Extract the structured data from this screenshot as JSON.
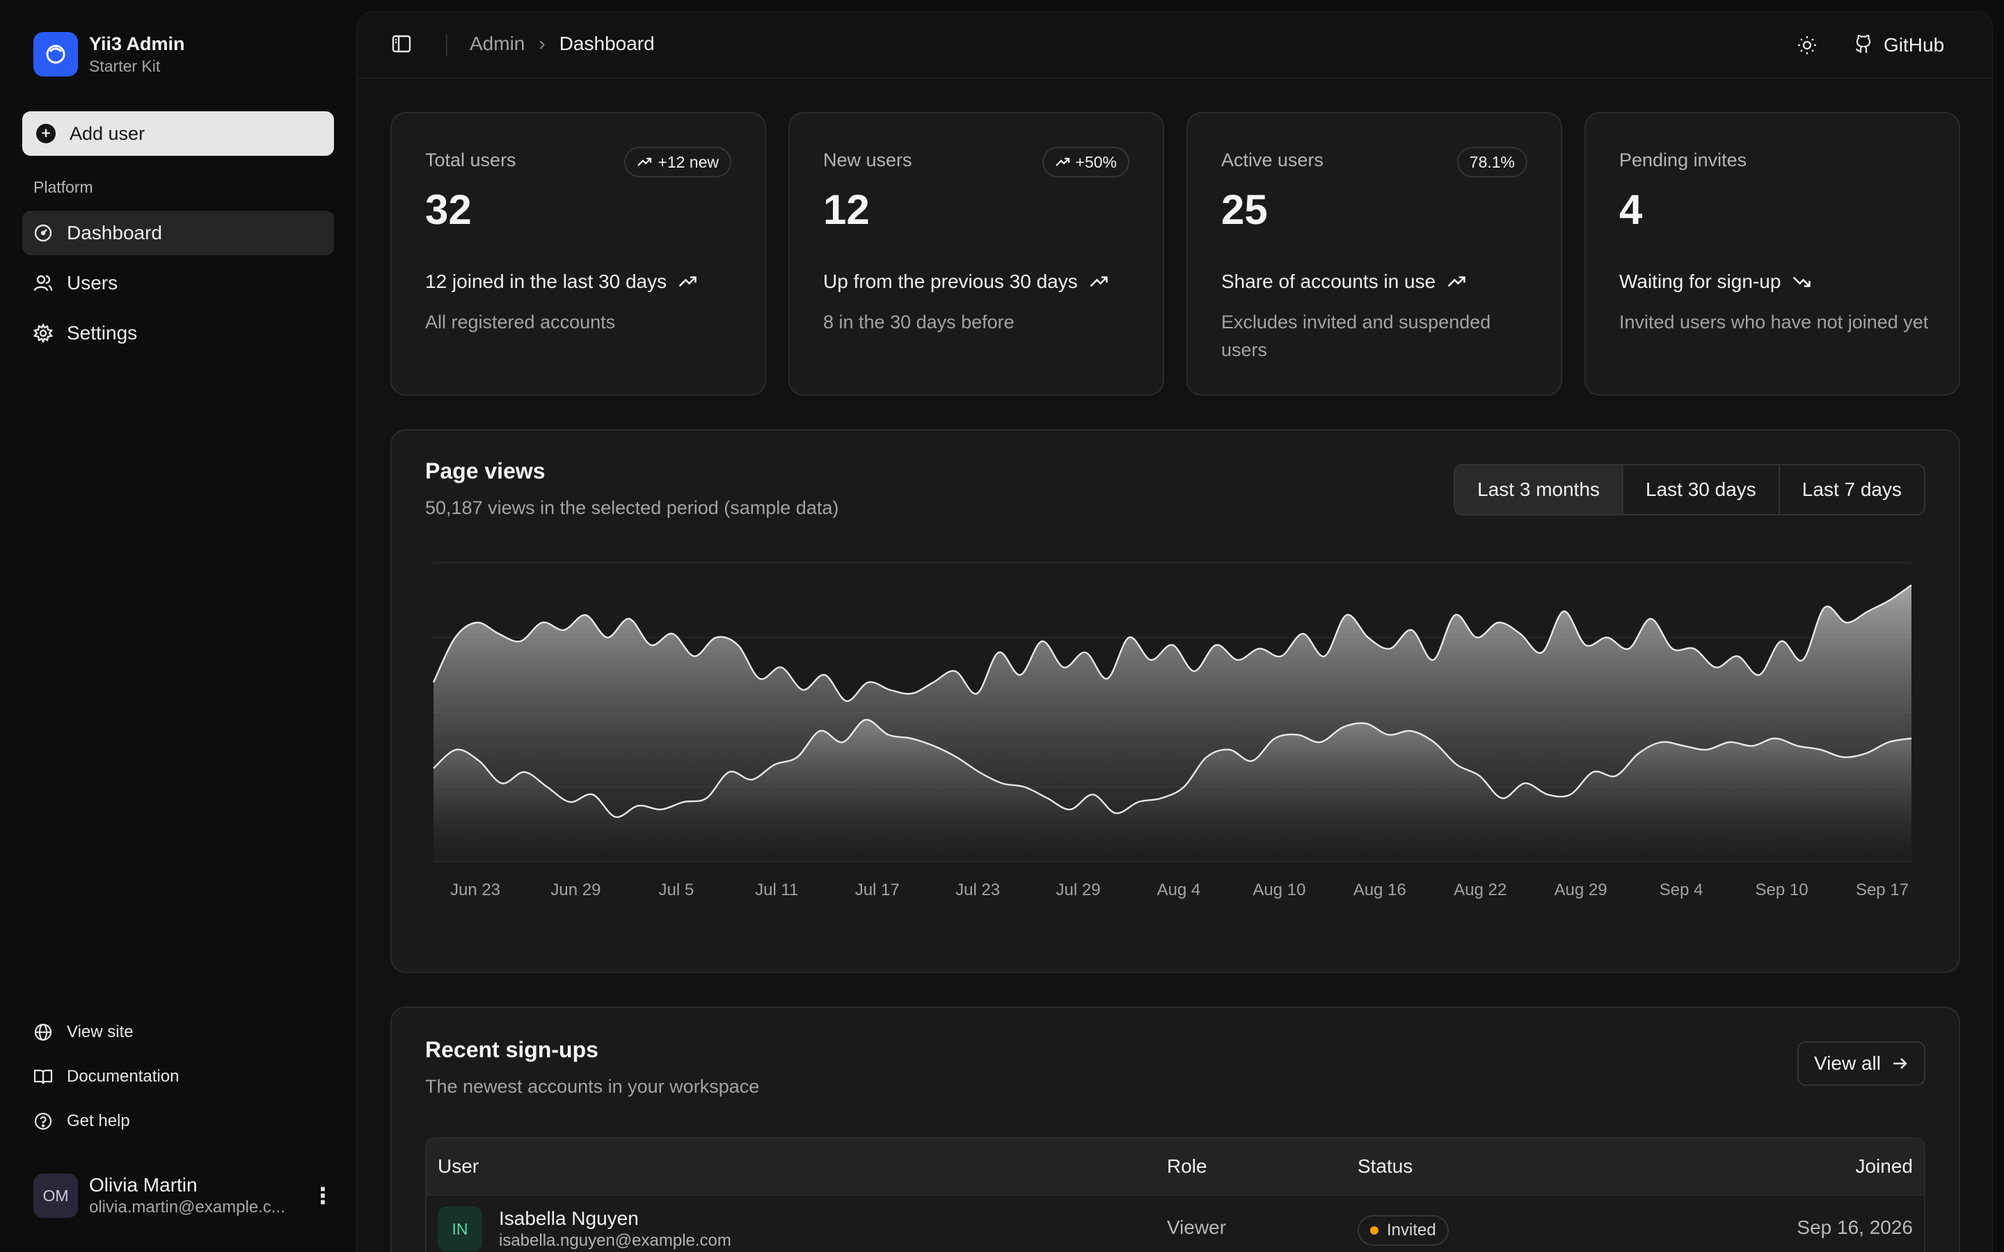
{
  "brand": {
    "title": "Yii3 Admin",
    "subtitle": "Starter Kit"
  },
  "sidebar": {
    "add_user_label": "Add user",
    "group_label": "Platform",
    "items": [
      {
        "label": "Dashboard",
        "icon": "gauge-icon",
        "active": true
      },
      {
        "label": "Users",
        "icon": "users-icon",
        "active": false
      },
      {
        "label": "Settings",
        "icon": "gear-icon",
        "active": false
      }
    ],
    "footer_items": [
      {
        "label": "View site",
        "icon": "globe-icon"
      },
      {
        "label": "Documentation",
        "icon": "book-icon"
      },
      {
        "label": "Get help",
        "icon": "help-circle-icon"
      }
    ],
    "user": {
      "initials": "OM",
      "name": "Olivia Martin",
      "email": "olivia.martin@example.c..."
    }
  },
  "topbar": {
    "breadcrumb": [
      "Admin",
      "Dashboard"
    ],
    "github_label": "GitHub"
  },
  "stats": [
    {
      "label": "Total users",
      "value": "32",
      "badge": "+12 new",
      "badge_icon": "trend-up-icon",
      "note": "12 joined in the last 30 days",
      "note_icon": "trend-up-icon",
      "sub": "All registered accounts"
    },
    {
      "label": "New users",
      "value": "12",
      "badge": "+50%",
      "badge_icon": "trend-up-icon",
      "note": "Up from the previous 30 days",
      "note_icon": "trend-up-icon",
      "sub": "8 in the 30 days before"
    },
    {
      "label": "Active users",
      "value": "25",
      "badge": "78.1%",
      "badge_icon": "",
      "note": "Share of accounts in use",
      "note_icon": "trend-up-icon",
      "sub": "Excludes invited and suspended users"
    },
    {
      "label": "Pending invites",
      "value": "4",
      "badge": "",
      "badge_icon": "",
      "note": "Waiting for sign-up",
      "note_icon": "trend-down-icon",
      "sub": "Invited users who have not joined yet"
    }
  ],
  "page_views": {
    "title": "Page views",
    "subtitle": "50,187 views in the selected period (sample data)",
    "ranges": [
      {
        "label": "Last 3 months",
        "active": true
      },
      {
        "label": "Last 30 days",
        "active": false
      },
      {
        "label": "Last 7 days",
        "active": false
      }
    ]
  },
  "chart_data": {
    "type": "area",
    "title": "",
    "xlabel": "",
    "ylabel": "",
    "grid": true,
    "tick_labels": [
      "Jun 23",
      "Jun 29",
      "Jul 5",
      "Jul 11",
      "Jul 17",
      "Jul 23",
      "Jul 29",
      "Aug 4",
      "Aug 10",
      "Aug 16",
      "Aug 22",
      "Aug 29",
      "Sep 4",
      "Sep 10",
      "Sep 17"
    ],
    "ylim": [
      0,
      400
    ],
    "series": [
      {
        "name": "",
        "values": [
          240,
          300,
          320,
          305,
          295,
          320,
          310,
          330,
          300,
          325,
          290,
          305,
          275,
          300,
          290,
          245,
          260,
          230,
          250,
          215,
          240,
          230,
          225,
          240,
          255,
          225,
          280,
          250,
          295,
          260,
          280,
          245,
          300,
          270,
          290,
          255,
          290,
          270,
          285,
          275,
          305,
          275,
          330,
          300,
          285,
          310,
          270,
          330,
          300,
          320,
          305,
          280,
          335,
          290,
          300,
          285,
          325,
          285,
          285,
          260,
          275,
          250,
          295,
          270,
          340,
          320,
          335,
          350,
          370
        ]
      },
      {
        "name": "",
        "values": [
          125,
          150,
          135,
          105,
          120,
          100,
          80,
          90,
          60,
          75,
          70,
          80,
          85,
          120,
          110,
          130,
          140,
          175,
          160,
          190,
          170,
          165,
          155,
          140,
          120,
          105,
          100,
          85,
          70,
          90,
          65,
          80,
          85,
          100,
          140,
          150,
          135,
          165,
          170,
          160,
          180,
          185,
          170,
          175,
          160,
          130,
          115,
          85,
          105,
          90,
          90,
          120,
          115,
          145,
          160,
          155,
          150,
          160,
          155,
          165,
          155,
          150,
          140,
          145,
          160,
          165
        ]
      }
    ]
  },
  "recent_signups": {
    "title": "Recent sign-ups",
    "subtitle": "The newest accounts in your workspace",
    "view_all_label": "View all",
    "columns": [
      "User",
      "Role",
      "Status",
      "Joined"
    ],
    "rows": [
      {
        "initials": "IN",
        "name": "Isabella Nguyen",
        "email": "isabella.nguyen@example.com",
        "role": "Viewer",
        "status": "Invited",
        "joined": "Sep 16, 2026"
      }
    ]
  },
  "colors": {
    "accent": "#2a5cf5",
    "status_invited": "#f59e0b",
    "avatar_user": "#5fd3a5"
  }
}
